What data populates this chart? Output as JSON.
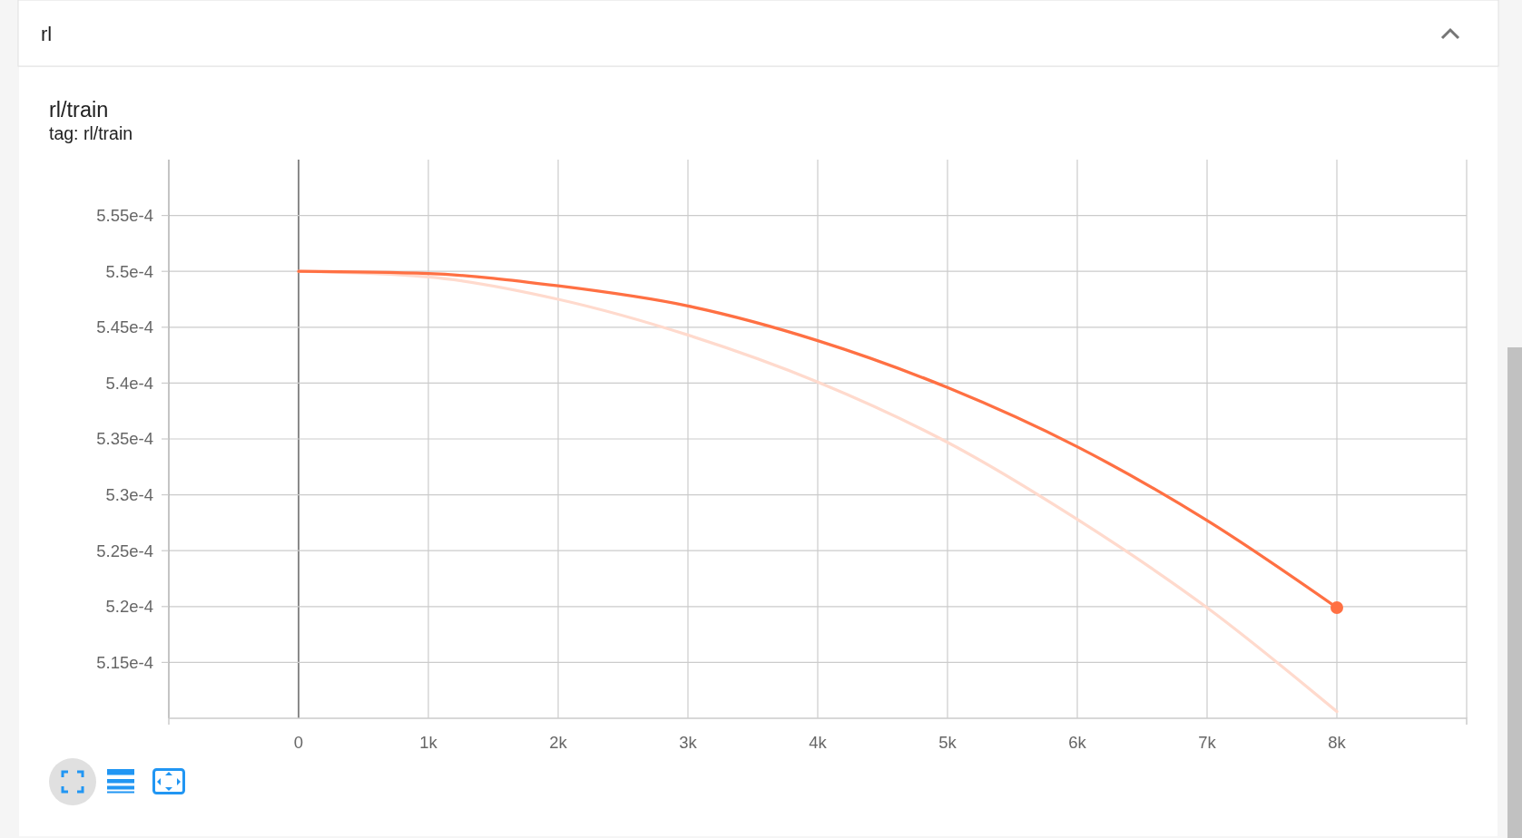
{
  "chart_data": {
    "type": "line",
    "title": "rl/train",
    "subtitle": "tag: rl/train",
    "annotations": [
      "rl"
    ],
    "xlim": [
      -1000,
      9000
    ],
    "ylim": [
      0.00051,
      0.00056
    ],
    "xticks": [
      0,
      {
        "value": 1000,
        "label": "1k"
      },
      {
        "value": 2000,
        "label": "2k"
      },
      {
        "value": 3000,
        "label": "3k"
      },
      {
        "value": 4000,
        "label": "4k"
      },
      {
        "value": 5000,
        "label": "5k"
      },
      {
        "value": 6000,
        "label": "6k"
      },
      {
        "value": 7000,
        "label": "7k"
      },
      {
        "value": 8000,
        "label": "8k"
      }
    ],
    "yticks": [
      {
        "value": 0.000515,
        "label": "5.15e-4"
      },
      {
        "value": 0.00052,
        "label": "5.2e-4"
      },
      {
        "value": 0.000525,
        "label": "5.25e-4"
      },
      {
        "value": 0.00053,
        "label": "5.3e-4"
      },
      {
        "value": 0.000535,
        "label": "5.35e-4"
      },
      {
        "value": 0.00054,
        "label": "5.4e-4"
      },
      {
        "value": 0.000545,
        "label": "5.45e-4"
      },
      {
        "value": 0.00055,
        "label": "5.5e-4"
      },
      {
        "value": 0.000555,
        "label": "5.55e-4"
      }
    ],
    "grid": true,
    "series": [
      {
        "color": "#ffdacd",
        "x": [
          0,
          1000,
          2000,
          3000,
          4000,
          5000,
          6000,
          7000,
          8000
        ],
        "values": [
          0.00055,
          0.0005495,
          0.0005475,
          0.0005443,
          0.0005401,
          0.0005347,
          0.0005278,
          0.0005199,
          0.0005106
        ]
      },
      {
        "color": "#ff7043",
        "x": [
          0,
          1000,
          2000,
          3000,
          4000,
          5000,
          6000,
          7000,
          8000
        ],
        "values": [
          0.00055,
          0.0005498,
          0.0005487,
          0.0005469,
          0.0005438,
          0.0005396,
          0.0005343,
          0.0005277,
          0.0005199
        ]
      },
      {
        "type": "scatter",
        "marker": "circle",
        "color": "#ff7043",
        "x": [
          8000
        ],
        "values": [
          0.0005199
        ]
      }
    ]
  }
}
